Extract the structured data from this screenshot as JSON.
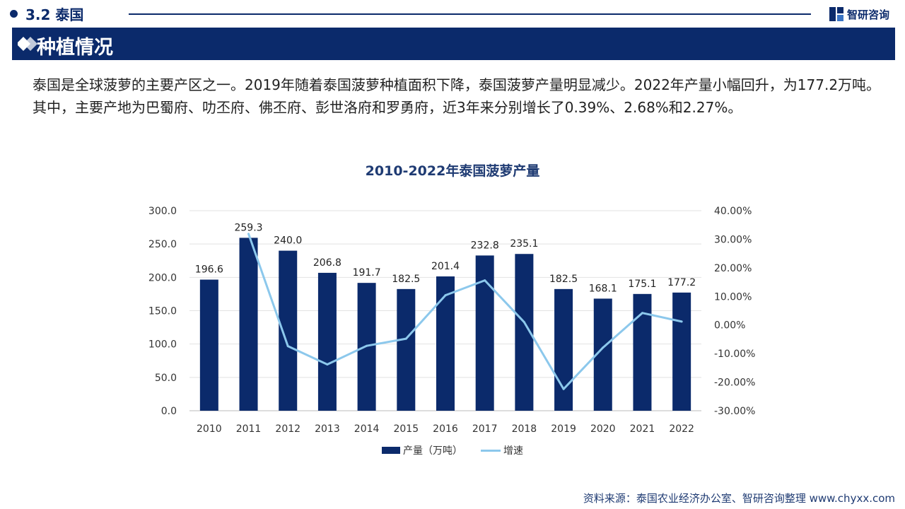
{
  "header": {
    "section": "3.2 泰国",
    "brand": "智研咨询",
    "banner_title": "种植情况"
  },
  "intro": "泰国是全球菠萝的主要产区之一。2019年随着泰国菠萝种植面积下降，泰国菠萝产量明显减少。2022年产量小幅回升，为177.2万吨。其中，主要产地为巴蜀府、叻丕府、佛丕府、彭世洛府和罗勇府，近3年来分别增长了0.39%、2.68%和2.27%。",
  "colors": {
    "brand": "#0b2a6b",
    "bar": "#0b2a6b",
    "line": "#8cc8ec",
    "title": "#1f3b73"
  },
  "chart_data": {
    "type": "bar",
    "title": "2010-2022年泰国菠萝产量",
    "categories": [
      "2010",
      "2011",
      "2012",
      "2013",
      "2014",
      "2015",
      "2016",
      "2017",
      "2018",
      "2019",
      "2020",
      "2021",
      "2022"
    ],
    "series": [
      {
        "name": "产量（万吨）",
        "type": "bar",
        "axis": "left",
        "values": [
          196.6,
          259.3,
          240.0,
          206.8,
          191.7,
          182.5,
          201.4,
          232.8,
          235.1,
          182.5,
          168.1,
          175.1,
          177.2
        ],
        "labels": [
          "196.6",
          "259.3",
          "240.0",
          "206.8",
          "191.7",
          "182.5",
          "201.4",
          "232.8",
          "235.1",
          "182.5",
          "168.1",
          "175.1",
          "177.2"
        ]
      },
      {
        "name": "增速",
        "type": "line",
        "axis": "right",
        "x": [
          "2011",
          "2012",
          "2013",
          "2014",
          "2015",
          "2016",
          "2017",
          "2018",
          "2019",
          "2020",
          "2021",
          "2022"
        ],
        "values": [
          31.9,
          -7.4,
          -13.8,
          -7.3,
          -4.8,
          10.4,
          15.6,
          1.0,
          -22.4,
          -7.9,
          4.2,
          1.2
        ]
      }
    ],
    "y_left": {
      "min": 0,
      "max": 300,
      "ticks": [
        "0.0",
        "50.0",
        "100.0",
        "150.0",
        "200.0",
        "250.0",
        "300.0"
      ]
    },
    "y_right": {
      "min": -30,
      "max": 40,
      "ticks": [
        "-30.00%",
        "-20.00%",
        "-10.00%",
        "0.00%",
        "10.00%",
        "20.00%",
        "30.00%",
        "40.00%"
      ]
    },
    "grid": "horizontal",
    "legend": "bottom-center"
  },
  "legend": {
    "bar_label": "产量（万吨）",
    "line_label": "增速"
  },
  "source": "资料来源：泰国农业经济办公室、智研咨询整理 www.chyxx.com"
}
